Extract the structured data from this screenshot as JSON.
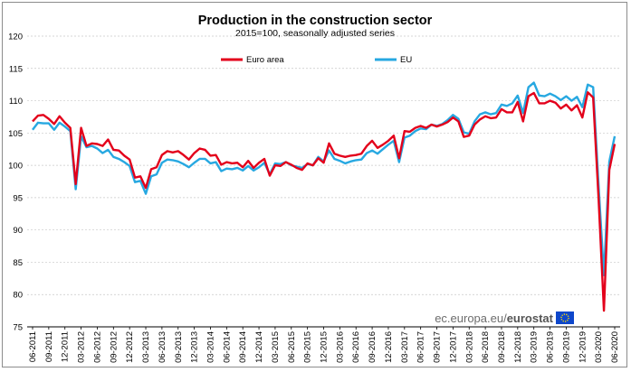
{
  "chart_data": {
    "type": "line",
    "title": "Production in the construction sector",
    "subtitle": "2015=100, seasonally adjusted series",
    "xlabel": "",
    "ylabel": "",
    "ylim": [
      75,
      120
    ],
    "yticks": [
      75,
      80,
      85,
      90,
      95,
      100,
      105,
      110,
      115,
      120
    ],
    "grid": true,
    "legend_placement": "top",
    "source": {
      "prefix": "ec.europa.eu/",
      "brand": "eurostat"
    },
    "x": [
      "06-2011",
      "07-2011",
      "08-2011",
      "09-2011",
      "10-2011",
      "11-2011",
      "12-2011",
      "01-2012",
      "02-2012",
      "03-2012",
      "04-2012",
      "05-2012",
      "06-2012",
      "07-2012",
      "08-2012",
      "09-2012",
      "10-2012",
      "11-2012",
      "12-2012",
      "01-2013",
      "02-2013",
      "03-2013",
      "04-2013",
      "05-2013",
      "06-2013",
      "07-2013",
      "08-2013",
      "09-2013",
      "10-2013",
      "11-2013",
      "12-2013",
      "01-2014",
      "02-2014",
      "03-2014",
      "04-2014",
      "05-2014",
      "06-2014",
      "07-2014",
      "08-2014",
      "09-2014",
      "10-2014",
      "11-2014",
      "12-2014",
      "01-2015",
      "02-2015",
      "03-2015",
      "04-2015",
      "05-2015",
      "06-2015",
      "07-2015",
      "08-2015",
      "09-2015",
      "10-2015",
      "11-2015",
      "12-2015",
      "01-2016",
      "02-2016",
      "03-2016",
      "04-2016",
      "05-2016",
      "06-2016",
      "07-2016",
      "08-2016",
      "09-2016",
      "10-2016",
      "11-2016",
      "12-2016",
      "01-2017",
      "02-2017",
      "03-2017",
      "04-2017",
      "05-2017",
      "06-2017",
      "07-2017",
      "08-2017",
      "09-2017",
      "10-2017",
      "11-2017",
      "12-2017",
      "01-2018",
      "02-2018",
      "03-2018",
      "04-2018",
      "05-2018",
      "06-2018",
      "07-2018",
      "08-2018",
      "09-2018",
      "10-2018",
      "11-2018",
      "12-2018",
      "01-2019",
      "02-2019",
      "03-2019",
      "04-2019",
      "05-2019",
      "06-2019",
      "07-2019",
      "08-2019",
      "09-2019",
      "10-2019",
      "11-2019",
      "12-2019",
      "01-2020",
      "02-2020",
      "03-2020",
      "04-2020",
      "05-2020",
      "06-2020"
    ],
    "xtick_labels": [
      "06-2011",
      "09-2011",
      "12-2011",
      "03-2012",
      "06-2012",
      "09-2012",
      "12-2012",
      "03-2013",
      "06-2013",
      "09-2013",
      "12-2013",
      "03-2014",
      "06-2014",
      "09-2014",
      "12-2014",
      "03-2015",
      "06-2015",
      "09-2015",
      "12-2015",
      "03-2016",
      "06-2016",
      "09-2016",
      "12-2016",
      "03-2017",
      "06-2017",
      "09-2017",
      "12-2017",
      "03-2018",
      "06-2018",
      "09-2018",
      "12-2018",
      "03-2019",
      "06-2019",
      "09-2019",
      "12-2019",
      "03-2020",
      "06-2020"
    ],
    "series": [
      {
        "name": "Euro area",
        "color": "#e3001b",
        "values": [
          106.8,
          107.7,
          107.8,
          107.2,
          106.4,
          107.6,
          106.6,
          105.8,
          97.1,
          105.8,
          103.0,
          103.4,
          103.3,
          103.0,
          104.0,
          102.4,
          102.3,
          101.5,
          100.9,
          98.1,
          98.3,
          96.5,
          99.4,
          99.7,
          101.6,
          102.2,
          102.0,
          102.2,
          101.6,
          100.9,
          101.9,
          102.6,
          102.4,
          101.5,
          101.6,
          100.1,
          100.5,
          100.3,
          100.4,
          99.7,
          100.7,
          99.6,
          100.4,
          101.0,
          98.4,
          100.0,
          99.9,
          100.5,
          100.1,
          99.6,
          99.3,
          100.3,
          100.0,
          101.1,
          100.4,
          103.4,
          101.8,
          101.5,
          101.3,
          101.5,
          101.6,
          101.8,
          103.0,
          103.8,
          102.7,
          103.2,
          103.8,
          104.6,
          101.1,
          105.3,
          105.2,
          105.8,
          106.1,
          105.8,
          106.3,
          106.0,
          106.3,
          106.7,
          107.4,
          106.8,
          104.4,
          104.6,
          106.3,
          107.1,
          107.6,
          107.3,
          107.4,
          108.7,
          108.2,
          108.2,
          109.8,
          106.8,
          110.7,
          111.2,
          109.6,
          109.6,
          110.0,
          109.7,
          108.8,
          109.4,
          108.5,
          109.3,
          107.4,
          111.3,
          110.5,
          95.0,
          77.5,
          99.3,
          103.3
        ]
      },
      {
        "name": "EU",
        "color": "#27a8e1",
        "values": [
          105.5,
          106.6,
          106.5,
          106.5,
          105.5,
          106.6,
          106.0,
          105.3,
          96.3,
          104.5,
          102.8,
          103.0,
          102.6,
          101.9,
          102.4,
          101.3,
          101.0,
          100.5,
          99.9,
          97.4,
          97.6,
          95.6,
          98.3,
          98.6,
          100.4,
          100.9,
          100.8,
          100.6,
          100.2,
          99.7,
          100.4,
          101.0,
          101.0,
          100.3,
          100.5,
          99.1,
          99.5,
          99.4,
          99.6,
          99.2,
          99.9,
          99.2,
          99.7,
          100.4,
          98.6,
          100.3,
          100.2,
          100.5,
          100.0,
          99.8,
          99.6,
          100.2,
          100.0,
          101.3,
          100.6,
          102.3,
          101.0,
          100.7,
          100.3,
          100.6,
          100.8,
          100.9,
          101.9,
          102.3,
          101.8,
          102.5,
          103.2,
          103.8,
          100.5,
          104.3,
          104.6,
          105.3,
          105.7,
          105.6,
          106.3,
          106.1,
          106.4,
          107.0,
          107.8,
          107.2,
          105.1,
          104.9,
          106.8,
          107.9,
          108.2,
          107.9,
          108.1,
          109.4,
          109.2,
          109.6,
          110.8,
          108.1,
          112.1,
          112.8,
          110.8,
          110.7,
          111.1,
          110.7,
          110.1,
          110.7,
          110.0,
          110.6,
          109.0,
          112.5,
          112.1,
          97.0,
          83.0,
          100.6,
          104.5
        ]
      }
    ]
  }
}
